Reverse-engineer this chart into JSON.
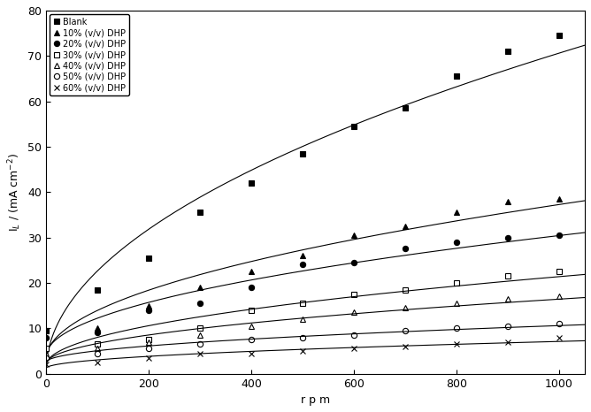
{
  "title": "",
  "xlabel": "r p m",
  "ylabel": "I$_L$ / (mA cm$^{-2}$)",
  "xlim": [
    0,
    1050
  ],
  "ylim": [
    0,
    80
  ],
  "xticks": [
    0,
    200,
    400,
    600,
    800,
    1000
  ],
  "yticks": [
    0,
    10,
    20,
    30,
    40,
    50,
    60,
    70,
    80
  ],
  "series": [
    {
      "label": "Blank",
      "marker": "s",
      "marker_filled": true,
      "x": [
        0,
        100,
        200,
        300,
        400,
        500,
        600,
        700,
        800,
        900,
        1000
      ],
      "y": [
        9.5,
        18.5,
        25.5,
        35.5,
        42.0,
        48.5,
        54.5,
        58.5,
        65.5,
        71.0,
        74.5
      ]
    },
    {
      "label": "10% (v/v) DHP",
      "marker": "^",
      "marker_filled": true,
      "x": [
        0,
        100,
        200,
        300,
        400,
        500,
        600,
        700,
        800,
        900,
        1000
      ],
      "y": [
        9.5,
        10.0,
        15.0,
        19.0,
        22.5,
        26.0,
        30.5,
        32.5,
        35.5,
        38.0,
        38.5
      ]
    },
    {
      "label": "20% (v/v) DHP",
      "marker": "o",
      "marker_filled": true,
      "x": [
        0,
        100,
        200,
        300,
        400,
        500,
        600,
        700,
        800,
        900,
        1000
      ],
      "y": [
        8.0,
        9.0,
        14.0,
        15.5,
        19.0,
        24.0,
        24.5,
        27.5,
        29.0,
        30.0,
        30.5
      ]
    },
    {
      "label": "30% (v/v) DHP",
      "marker": "s",
      "marker_filled": false,
      "x": [
        0,
        100,
        200,
        300,
        400,
        500,
        600,
        700,
        800,
        900,
        1000
      ],
      "y": [
        5.5,
        6.5,
        7.5,
        10.0,
        14.0,
        15.5,
        17.5,
        18.5,
        20.0,
        21.5,
        22.5
      ]
    },
    {
      "label": "40% (v/v) DHP",
      "marker": "^",
      "marker_filled": false,
      "x": [
        0,
        100,
        200,
        300,
        400,
        500,
        600,
        700,
        800,
        900,
        1000
      ],
      "y": [
        4.5,
        5.5,
        7.0,
        8.5,
        10.5,
        12.0,
        13.5,
        14.5,
        15.5,
        16.5,
        17.0
      ]
    },
    {
      "label": "50% (v/v) DHP",
      "marker": "o",
      "marker_filled": false,
      "x": [
        0,
        100,
        200,
        300,
        400,
        500,
        600,
        700,
        800,
        900,
        1000
      ],
      "y": [
        3.5,
        4.5,
        5.5,
        6.5,
        7.5,
        8.0,
        8.5,
        9.5,
        10.0,
        10.5,
        11.0
      ]
    },
    {
      "label": "60% (v/v) DHP",
      "marker": "x",
      "marker_filled": false,
      "x": [
        0,
        100,
        200,
        300,
        400,
        500,
        600,
        700,
        800,
        900,
        1000
      ],
      "y": [
        2.0,
        2.5,
        3.5,
        4.5,
        4.5,
        5.0,
        5.5,
        6.0,
        6.5,
        7.0,
        8.0
      ]
    }
  ],
  "line_color": "black",
  "marker_color": "black",
  "figsize": [
    6.68,
    4.66
  ],
  "dpi": 100
}
